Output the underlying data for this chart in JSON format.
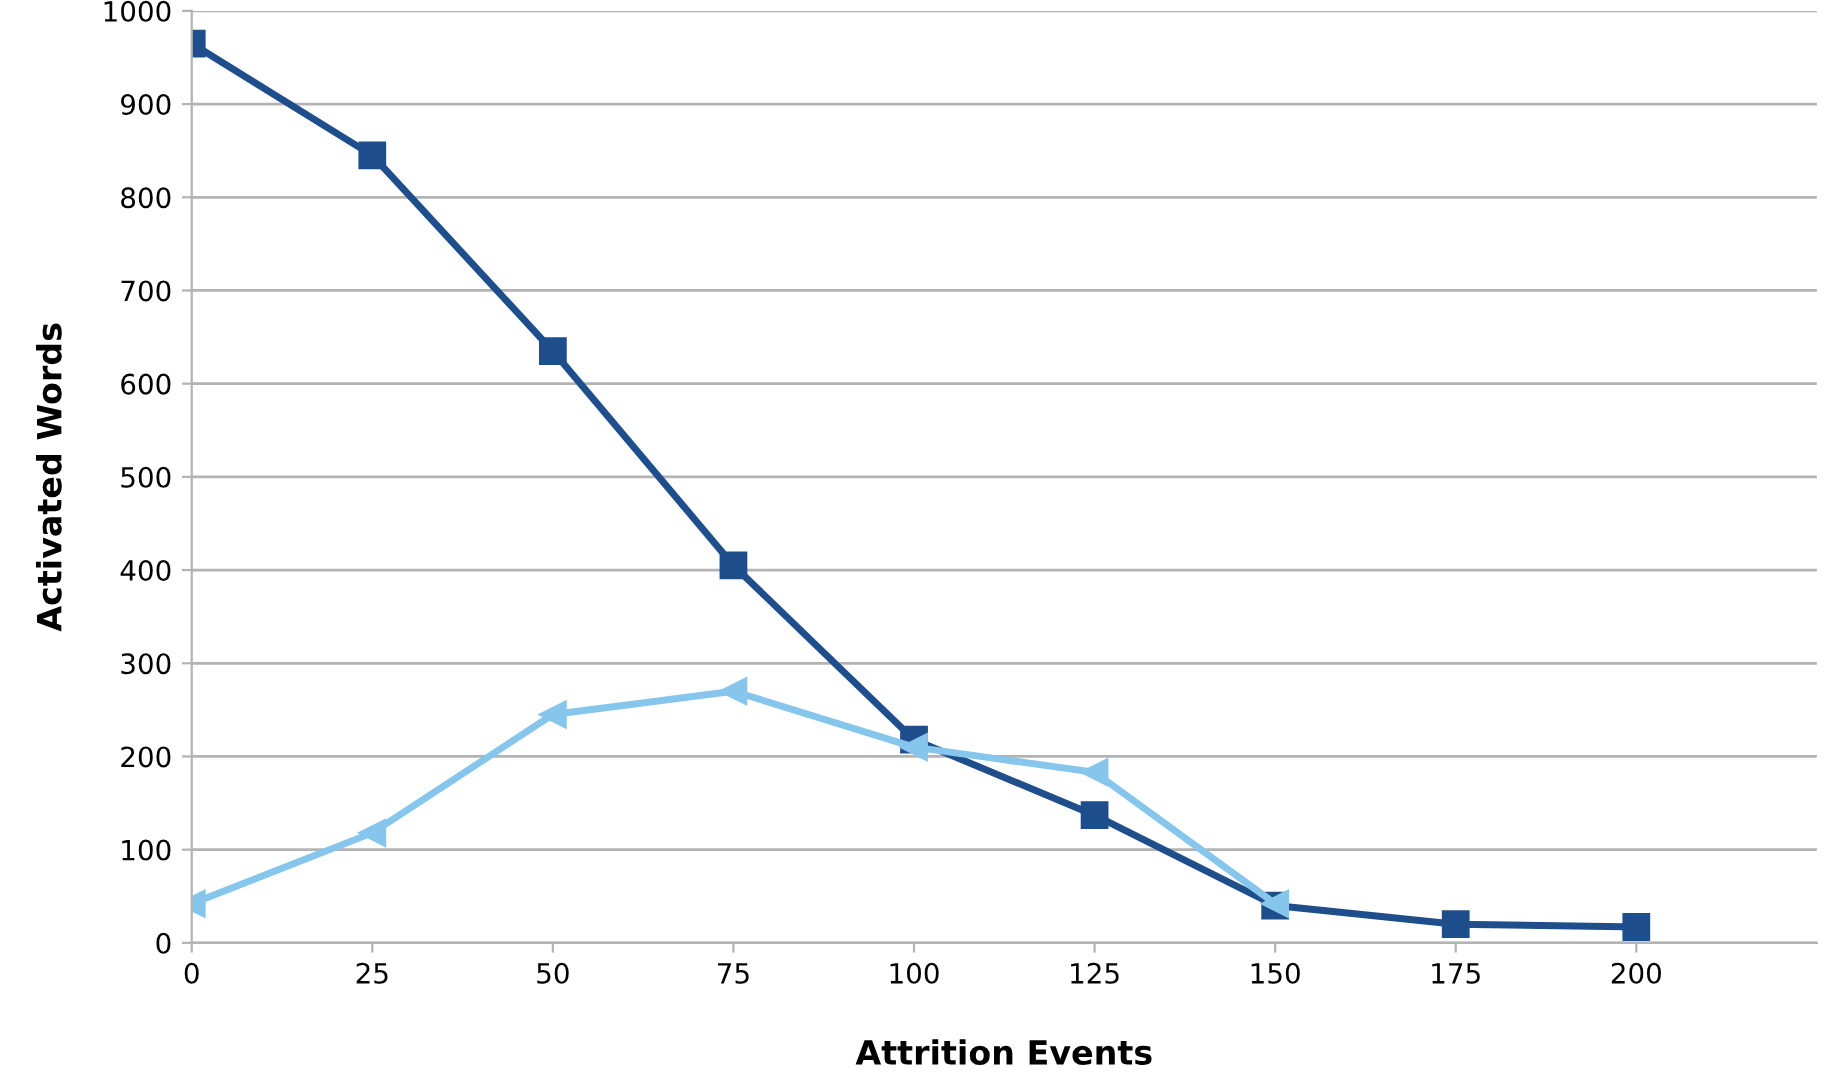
{
  "chart_data": {
    "type": "line",
    "xlabel": "Attrition Events",
    "ylabel": "Activated Words",
    "x": [
      0,
      25,
      50,
      75,
      100,
      125,
      150,
      175,
      200
    ],
    "series": [
      {
        "color": "#1f4e8c",
        "marker": "square",
        "values": [
          965,
          845,
          635,
          405,
          218,
          137,
          40,
          20,
          17
        ]
      },
      {
        "color": "#87c6ec",
        "marker": "triangle",
        "values": [
          42,
          118,
          245,
          270,
          210,
          183,
          42,
          null,
          null
        ]
      }
    ],
    "xlim": [
      0,
      225
    ],
    "xticks": [
      0,
      25,
      50,
      75,
      100,
      125,
      150,
      175,
      200
    ],
    "ylim": [
      0,
      1000
    ],
    "yticks": [
      0,
      100,
      200,
      300,
      400,
      500,
      600,
      700,
      800,
      900,
      1000
    ],
    "grid": "y",
    "legend": false
  }
}
